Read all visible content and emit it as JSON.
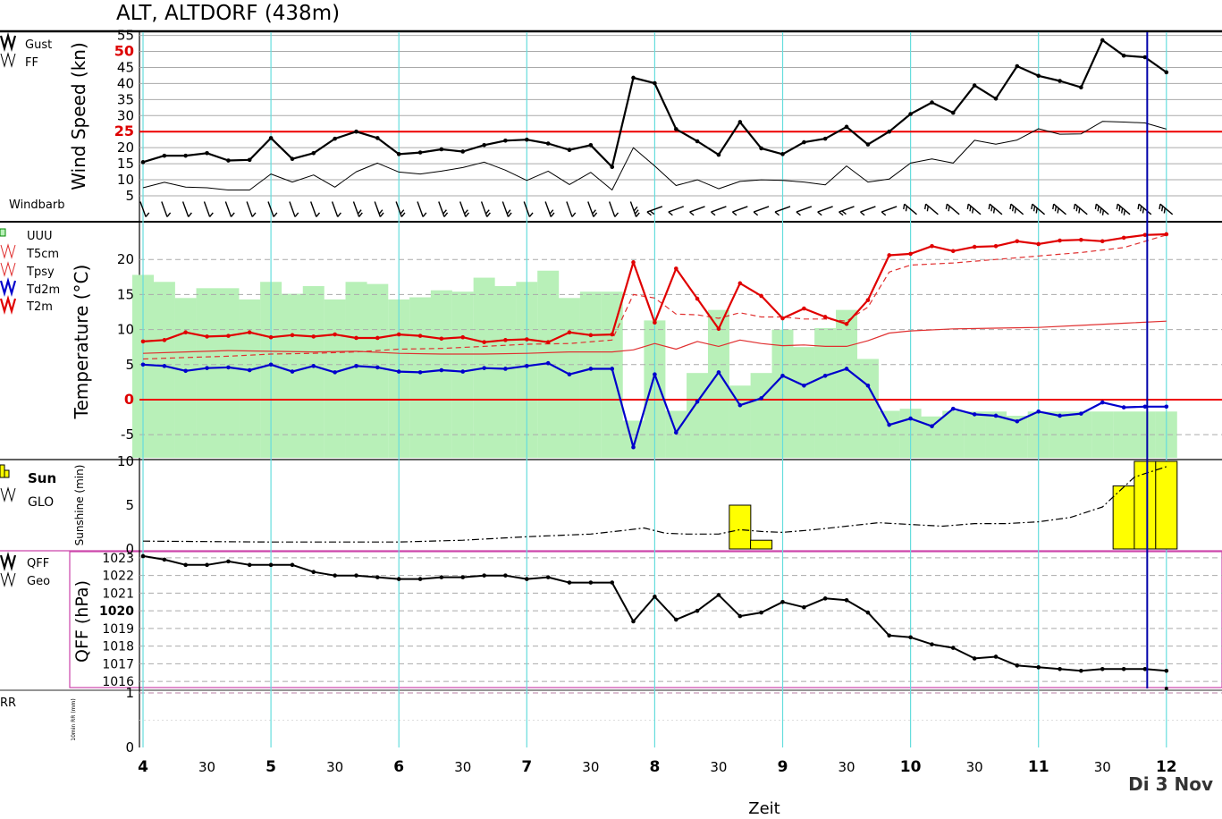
{
  "title": "ALT, ALTDORF (438m)",
  "date_label": "Di 3 Nov",
  "x_title": "Zeit",
  "x_ticks": [
    {
      "t": 0,
      "label": "4",
      "major": true
    },
    {
      "t": 0.5,
      "label": "30",
      "major": false
    },
    {
      "t": 1,
      "label": "5",
      "major": true
    },
    {
      "t": 1.5,
      "label": "30",
      "major": false
    },
    {
      "t": 2,
      "label": "6",
      "major": true
    },
    {
      "t": 2.5,
      "label": "30",
      "major": false
    },
    {
      "t": 3,
      "label": "7",
      "major": true
    },
    {
      "t": 3.5,
      "label": "30",
      "major": false
    },
    {
      "t": 4,
      "label": "8",
      "major": true
    },
    {
      "t": 4.5,
      "label": "30",
      "major": false
    },
    {
      "t": 5,
      "label": "9",
      "major": true
    },
    {
      "t": 5.5,
      "label": "30",
      "major": false
    },
    {
      "t": 6,
      "label": "10",
      "major": true
    },
    {
      "t": 6.5,
      "label": "30",
      "major": false
    },
    {
      "t": 7,
      "label": "11",
      "major": true
    },
    {
      "t": 7.5,
      "label": "30",
      "major": false
    },
    {
      "t": 8,
      "label": "12",
      "major": true
    }
  ],
  "current_time": 7.85,
  "colors": {
    "gust": "#000000",
    "t2m": "#e00000",
    "td2m": "#0000cc",
    "rh": "#b8f0b8",
    "sun": "#ffff00",
    "grid_v": "#66dddd",
    "now": "#0000aa",
    "threshold": "#ee0000",
    "qff_frame": "#cc44aa"
  },
  "chart_data": [
    {
      "panel": "wind",
      "type": "line",
      "ylabel": "Wind Speed (kn)",
      "y_ticks": [
        "5",
        "10",
        "15",
        "20",
        "25",
        "30",
        "35",
        "40",
        "45",
        "50",
        "55"
      ],
      "highlight_ticks": [
        "25",
        "50"
      ],
      "ylim": [
        5,
        56
      ],
      "threshold": 25,
      "legend": [
        "Gust",
        "FF"
      ],
      "barb_label": "Windbarb",
      "series": [
        {
          "name": "Gust",
          "x": [
            0,
            0.167,
            0.333,
            0.5,
            0.667,
            0.833,
            1,
            1.167,
            1.333,
            1.5,
            1.667,
            1.833,
            2,
            2.167,
            2.333,
            2.5,
            2.667,
            2.833,
            3,
            3.167,
            3.333,
            3.5,
            3.667,
            3.833,
            4,
            4.167,
            4.333,
            4.5,
            4.667,
            4.833,
            5,
            5.167,
            5.333,
            5.5,
            5.667,
            5.833,
            6,
            6.167,
            6.333,
            6.5,
            6.667,
            6.833,
            7,
            7.167,
            7.333,
            7.5,
            7.667,
            7.833,
            8
          ],
          "values": [
            15.5,
            17.5,
            17.5,
            18.3,
            16,
            16.2,
            23,
            16.5,
            18.3,
            22.8,
            25,
            23,
            18,
            18.5,
            19.5,
            18.8,
            20.8,
            22.2,
            22.5,
            21.3,
            19.3,
            20.8,
            14,
            41.8,
            40.1,
            25.8,
            22,
            17.8,
            28,
            19.8,
            18,
            21.7,
            22.8,
            26.5,
            21,
            25,
            30.5,
            34.1,
            30.9,
            39.4,
            35.3,
            45.4,
            42.4,
            40.8,
            38.8,
            53.5,
            48.7,
            48.2,
            43.5
          ]
        },
        {
          "name": "FF",
          "x": [
            0,
            0.167,
            0.333,
            0.5,
            0.667,
            0.833,
            1,
            1.167,
            1.333,
            1.5,
            1.667,
            1.833,
            2,
            2.167,
            2.333,
            2.5,
            2.667,
            2.833,
            3,
            3.167,
            3.333,
            3.5,
            3.667,
            3.833,
            4,
            4.167,
            4.333,
            4.5,
            4.667,
            4.833,
            5,
            5.167,
            5.333,
            5.5,
            5.667,
            5.833,
            6,
            6.167,
            6.333,
            6.5,
            6.667,
            6.833,
            7,
            7.167,
            7.333,
            7.5,
            7.667,
            7.833,
            8
          ],
          "values": [
            7.5,
            9.2,
            7.7,
            7.5,
            6.8,
            6.8,
            11.8,
            9.3,
            11.5,
            7.7,
            12.5,
            15.2,
            12.4,
            11.8,
            12.7,
            13.8,
            15.5,
            13,
            9.8,
            12.7,
            8.5,
            12.3,
            6.8,
            20,
            14.3,
            8.2,
            10,
            7.2,
            9.5,
            10,
            9.8,
            9.3,
            8.4,
            14.3,
            9.3,
            10.2,
            15.2,
            16.5,
            15.2,
            22.3,
            21.1,
            22.4,
            25.9,
            24.2,
            24.3,
            28.2,
            28,
            27.7,
            25.8
          ]
        }
      ]
    },
    {
      "panel": "temperature",
      "type": "line",
      "ylabel": "Temperature (°C)",
      "y_ticks": [
        "-5",
        "0",
        "5",
        "10",
        "15",
        "20"
      ],
      "highlight_ticks": [
        "0"
      ],
      "ylim": [
        -8.3,
        25
      ],
      "threshold": 0,
      "legend": [
        "UUU",
        "T5cm",
        "Tpsy",
        "Td2m",
        "T2m"
      ],
      "series": [
        {
          "name": "T2m",
          "x": [
            0,
            0.167,
            0.333,
            0.5,
            0.667,
            0.833,
            1,
            1.167,
            1.333,
            1.5,
            1.667,
            1.833,
            2,
            2.167,
            2.333,
            2.5,
            2.667,
            2.833,
            3,
            3.167,
            3.333,
            3.5,
            3.667,
            3.833,
            4,
            4.167,
            4.333,
            4.5,
            4.667,
            4.833,
            5,
            5.167,
            5.333,
            5.5,
            5.667,
            5.833,
            6,
            6.167,
            6.333,
            6.5,
            6.667,
            6.833,
            7,
            7.167,
            7.333,
            7.5,
            7.667,
            7.833,
            8
          ],
          "values": [
            8.3,
            8.5,
            9.6,
            9,
            9.1,
            9.6,
            8.9,
            9.2,
            9,
            9.3,
            8.8,
            8.8,
            9.3,
            9.1,
            8.7,
            8.9,
            8.2,
            8.5,
            8.6,
            8.2,
            9.6,
            9.2,
            9.3,
            19.6,
            11,
            18.7,
            14.4,
            10.1,
            16.6,
            14.8,
            11.6,
            13,
            11.8,
            10.8,
            14.2,
            20.6,
            20.8,
            21.9,
            21.2,
            21.8,
            21.9,
            22.6,
            22.2,
            22.7,
            22.8,
            22.6,
            23.1,
            23.5,
            23.6
          ]
        },
        {
          "name": "Td2m",
          "x": [
            0,
            0.167,
            0.333,
            0.5,
            0.667,
            0.833,
            1,
            1.167,
            1.333,
            1.5,
            1.667,
            1.833,
            2,
            2.167,
            2.333,
            2.5,
            2.667,
            2.833,
            3,
            3.167,
            3.333,
            3.5,
            3.667,
            3.833,
            4,
            4.167,
            4.333,
            4.5,
            4.667,
            4.833,
            5,
            5.167,
            5.333,
            5.5,
            5.667,
            5.833,
            6,
            6.167,
            6.333,
            6.5,
            6.667,
            6.833,
            7,
            7.167,
            7.333,
            7.5,
            7.667,
            7.833,
            8
          ],
          "values": [
            5,
            4.8,
            4.1,
            4.5,
            4.6,
            4.2,
            5,
            4,
            4.8,
            3.9,
            4.8,
            4.6,
            4,
            3.9,
            4.2,
            4,
            4.5,
            4.4,
            4.8,
            5.2,
            3.6,
            4.4,
            4.4,
            -6.8,
            3.6,
            -4.7,
            -0.3,
            3.9,
            -0.8,
            0.2,
            3.4,
            2,
            3.4,
            4.4,
            2,
            -3.6,
            -2.7,
            -3.8,
            -1.3,
            -2.1,
            -2.3,
            -3.1,
            -1.7,
            -2.3,
            -2,
            -0.4,
            -1.1,
            -1,
            -1
          ]
        },
        {
          "name": "Tpsy",
          "x": [
            0,
            0.333,
            0.667,
            1,
            1.333,
            1.667,
            2,
            2.333,
            2.667,
            3,
            3.333,
            3.667,
            3.833,
            4,
            4.167,
            4.333,
            4.5,
            4.667,
            4.833,
            5,
            5.167,
            5.333,
            5.5,
            5.667,
            5.833,
            6,
            6.333,
            6.667,
            7,
            7.333,
            7.667,
            8
          ],
          "values": [
            5.8,
            6,
            6.2,
            6.5,
            6.6,
            6.8,
            7.2,
            7.3,
            7.6,
            7.9,
            8,
            8.5,
            15,
            14.5,
            12.2,
            12.1,
            11.6,
            12.4,
            11.8,
            11.8,
            11.5,
            11.5,
            11.2,
            13.2,
            18.2,
            19.2,
            19.5,
            20,
            20.5,
            21,
            21.7,
            23.5
          ]
        },
        {
          "name": "T5cm",
          "x": [
            0,
            0.333,
            0.667,
            1,
            1.333,
            1.667,
            2,
            2.333,
            2.667,
            3,
            3.333,
            3.667,
            3.833,
            4,
            4.167,
            4.333,
            4.5,
            4.667,
            4.833,
            5,
            5.167,
            5.333,
            5.5,
            5.667,
            5.833,
            6,
            6.333,
            6.667,
            7,
            7.333,
            7.667,
            8
          ],
          "values": [
            6.6,
            6.8,
            7,
            6.9,
            6.8,
            6.9,
            6.6,
            6.5,
            6.5,
            6.6,
            6.8,
            6.8,
            7.1,
            8,
            7.2,
            8.3,
            7.6,
            8.5,
            8,
            7.7,
            7.8,
            7.6,
            7.6,
            8.4,
            9.5,
            9.8,
            10.1,
            10.2,
            10.3,
            10.6,
            10.9,
            11.2
          ]
        },
        {
          "name": "UUU",
          "type": "bar",
          "x": [
            0,
            0.167,
            0.333,
            0.5,
            0.667,
            0.833,
            1,
            1.167,
            1.333,
            1.5,
            1.667,
            1.833,
            2,
            2.167,
            2.333,
            2.5,
            2.667,
            2.833,
            3,
            3.167,
            3.333,
            3.5,
            3.667,
            3.833,
            4,
            4.167,
            4.333,
            4.5,
            4.667,
            4.833,
            5,
            5.167,
            5.333,
            5.5,
            5.667,
            5.833,
            6,
            6.167,
            6.333,
            6.5,
            6.667,
            6.833,
            7,
            7.167,
            7.333,
            7.5,
            7.667,
            7.833,
            8
          ],
          "values": [
            17.8,
            16.8,
            14.5,
            15.9,
            15.9,
            14.3,
            16.8,
            15.1,
            16.2,
            14.3,
            16.8,
            16.5,
            14.3,
            14.6,
            15.6,
            15.4,
            17.4,
            16.2,
            16.8,
            18.4,
            14.5,
            15.4,
            15.4,
            -3,
            11.3,
            -1.6,
            3.8,
            12.8,
            2,
            3.8,
            10,
            7.5,
            10.2,
            12.8,
            5.8,
            -1.6,
            -1.3,
            -2.4,
            -1.6,
            -1.7,
            -1.7,
            -2.3,
            -1.7,
            -1.7,
            -1.7,
            -1.7,
            -1.7,
            -1.7,
            -1.7
          ]
        }
      ]
    },
    {
      "panel": "sunshine",
      "type": "bar",
      "ylabel": "Sunshine (min)",
      "y_ticks": [
        "0",
        "5",
        "10"
      ],
      "ylim": [
        0,
        10
      ],
      "legend": [
        "Sun",
        "GLO"
      ],
      "series": [
        {
          "name": "Sun",
          "x": [
            4.667,
            4.833,
            7.667,
            7.833,
            8
          ],
          "values": [
            5,
            1,
            7.2,
            10,
            10
          ]
        },
        {
          "name": "GLO",
          "x": [
            0,
            1,
            2,
            2.5,
            3,
            3.5,
            3.75,
            3.917,
            4.083,
            4.25,
            4.5,
            4.667,
            4.833,
            5,
            5.25,
            5.5,
            5.75,
            6,
            6.25,
            6.5,
            6.75,
            7,
            7.25,
            7.5,
            7.75,
            8
          ],
          "values": [
            0.9,
            0.8,
            0.8,
            1,
            1.4,
            1.7,
            2.1,
            2.4,
            1.8,
            1.7,
            1.7,
            2.2,
            2,
            1.9,
            2.2,
            2.6,
            3,
            2.8,
            2.6,
            2.9,
            2.9,
            3.1,
            3.6,
            4.8,
            8.2,
            9.4
          ]
        }
      ]
    },
    {
      "panel": "pressure",
      "type": "line",
      "ylabel": "QFF (hPa)",
      "y_ticks": [
        "1016",
        "1017",
        "1018",
        "1019",
        "1020",
        "1021",
        "1022",
        "1023"
      ],
      "highlight_ticks": [
        "1020"
      ],
      "ylim": [
        1015.6,
        1023.3
      ],
      "legend": [
        "QFF",
        "Geo"
      ],
      "series": [
        {
          "name": "QFF",
          "x": [
            0,
            0.167,
            0.333,
            0.5,
            0.667,
            0.833,
            1,
            1.167,
            1.333,
            1.5,
            1.667,
            1.833,
            2,
            2.167,
            2.333,
            2.5,
            2.667,
            2.833,
            3,
            3.167,
            3.333,
            3.5,
            3.667,
            3.833,
            4,
            4.167,
            4.333,
            4.5,
            4.667,
            4.833,
            5,
            5.167,
            5.333,
            5.5,
            5.667,
            5.833,
            6,
            6.167,
            6.333,
            6.5,
            6.667,
            6.833,
            7,
            7.167,
            7.333,
            7.5,
            7.667,
            7.833,
            8
          ],
          "values": [
            1023.1,
            1022.9,
            1022.6,
            1022.6,
            1022.8,
            1022.6,
            1022.6,
            1022.6,
            1022.2,
            1022,
            1022,
            1021.9,
            1021.8,
            1021.8,
            1021.9,
            1021.9,
            1022,
            1022,
            1021.8,
            1021.9,
            1021.6,
            1021.6,
            1021.6,
            1019.4,
            1020.8,
            1019.5,
            1020,
            1020.9,
            1019.7,
            1019.9,
            1020.5,
            1020.2,
            1020.7,
            1020.6,
            1019.9,
            1018.6,
            1018.5,
            1018.1,
            1017.9,
            1017.3,
            1017.4,
            1016.9,
            1016.8,
            1016.7,
            1016.6,
            1016.7,
            1016.7,
            1016.7,
            1016.6
          ]
        }
      ]
    },
    {
      "panel": "precipitation",
      "type": "bar",
      "ylabel": "10min RR (mm)",
      "y_ticks": [
        "0",
        "1"
      ],
      "ylim": [
        0,
        1
      ],
      "legend": [
        "RR"
      ],
      "series": [
        {
          "name": "RR",
          "x": [],
          "values": []
        }
      ]
    }
  ]
}
